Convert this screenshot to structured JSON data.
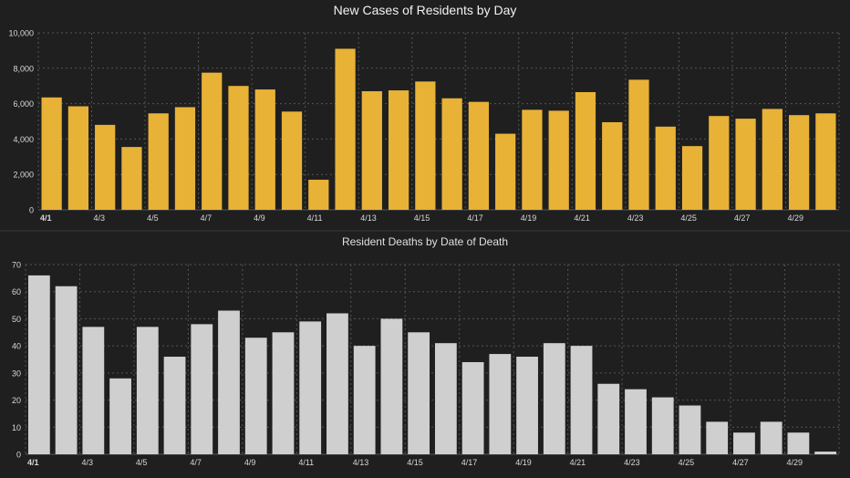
{
  "colors": {
    "background": "#1f1f1f",
    "grid": "#555555",
    "axis_text": "#d8d8d8",
    "cases_bar": "#e8b236",
    "deaths_bar": "#cfcfcf"
  },
  "chart_data": [
    {
      "type": "bar",
      "title": "New Cases of Residents by Day",
      "xlabel": "",
      "ylabel": "",
      "ylim": [
        0,
        10000
      ],
      "yticks": [
        "0",
        "2,000",
        "4,000",
        "6,000",
        "8,000",
        "10,000"
      ],
      "ytick_values": [
        0,
        2000,
        4000,
        6000,
        8000,
        10000
      ],
      "grid": true,
      "categories": [
        "4/1",
        "4/2",
        "4/3",
        "4/4",
        "4/5",
        "4/6",
        "4/7",
        "4/8",
        "4/9",
        "4/10",
        "4/11",
        "4/12",
        "4/13",
        "4/14",
        "4/15",
        "4/16",
        "4/17",
        "4/18",
        "4/19",
        "4/20",
        "4/21",
        "4/22",
        "4/23",
        "4/24",
        "4/25",
        "4/26",
        "4/27",
        "4/28",
        "4/29",
        "4/30"
      ],
      "xtick_labels": [
        "4/1",
        "4/3",
        "4/5",
        "4/7",
        "4/9",
        "4/11",
        "4/13",
        "4/15",
        "4/17",
        "4/19",
        "4/21",
        "4/23",
        "4/25",
        "4/27",
        "4/29"
      ],
      "values": [
        6350,
        5850,
        4800,
        3550,
        5450,
        5800,
        7750,
        7000,
        6800,
        5550,
        1700,
        9100,
        6700,
        6750,
        7250,
        6300,
        6100,
        4300,
        5650,
        5600,
        6650,
        4950,
        7350,
        4700,
        3600,
        5300,
        5150,
        5700,
        5350,
        5450
      ]
    },
    {
      "type": "bar",
      "title": "Resident Deaths by Date of Death",
      "xlabel": "",
      "ylabel": "",
      "ylim": [
        0,
        70
      ],
      "yticks": [
        "0",
        "10",
        "20",
        "30",
        "40",
        "50",
        "60",
        "70"
      ],
      "ytick_values": [
        0,
        10,
        20,
        30,
        40,
        50,
        60,
        70
      ],
      "grid": true,
      "categories": [
        "4/1",
        "4/2",
        "4/3",
        "4/4",
        "4/5",
        "4/6",
        "4/7",
        "4/8",
        "4/9",
        "4/10",
        "4/11",
        "4/12",
        "4/13",
        "4/14",
        "4/15",
        "4/16",
        "4/17",
        "4/18",
        "4/19",
        "4/20",
        "4/21",
        "4/22",
        "4/23",
        "4/24",
        "4/25",
        "4/26",
        "4/27",
        "4/28",
        "4/29",
        "4/30"
      ],
      "xtick_labels": [
        "4/1",
        "4/3",
        "4/5",
        "4/7",
        "4/9",
        "4/11",
        "4/13",
        "4/15",
        "4/17",
        "4/19",
        "4/21",
        "4/23",
        "4/25",
        "4/27",
        "4/29"
      ],
      "values": [
        66,
        62,
        47,
        28,
        47,
        36,
        48,
        53,
        43,
        45,
        49,
        52,
        40,
        50,
        45,
        41,
        34,
        37,
        36,
        41,
        40,
        26,
        24,
        21,
        18,
        12,
        8,
        12,
        8,
        1
      ]
    }
  ]
}
